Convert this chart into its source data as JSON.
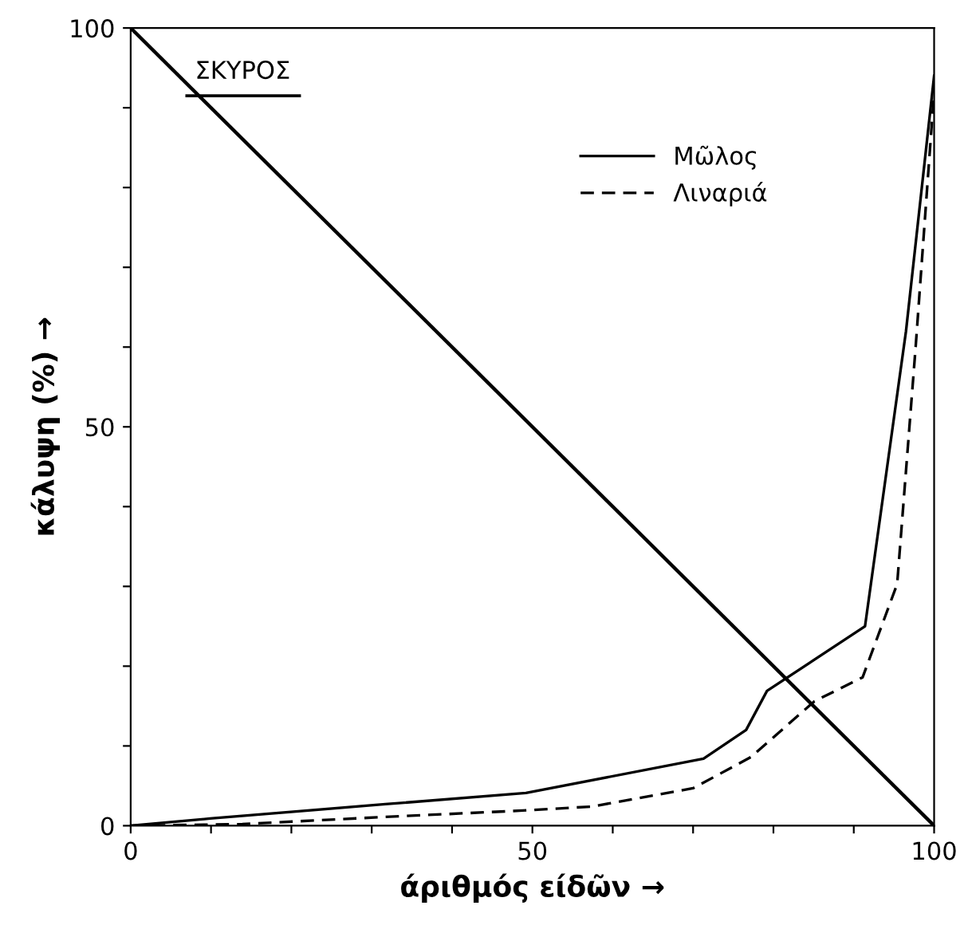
{
  "chart_data": {
    "type": "line",
    "title": "ΣΚΥΡΟΣ",
    "xlabel": "άριθμός είδῶν →",
    "ylabel": "κάλυψη (%) →",
    "xlim": [
      0,
      100
    ],
    "ylim": [
      0,
      100
    ],
    "xticks": [
      0,
      {
        "value": 10,
        "label": null
      },
      {
        "value": 20,
        "label": null
      },
      {
        "value": 30,
        "label": null
      },
      {
        "value": 40,
        "label": null
      },
      50,
      {
        "value": 60,
        "label": null
      },
      {
        "value": 70,
        "label": null
      },
      {
        "value": 80,
        "label": null
      },
      {
        "value": 90,
        "label": null
      },
      100
    ],
    "yticks": [
      0,
      {
        "value": 10,
        "label": null
      },
      {
        "value": 20,
        "label": null
      },
      {
        "value": 30,
        "label": null
      },
      {
        "value": 40,
        "label": null
      },
      50,
      {
        "value": 60,
        "label": null
      },
      {
        "value": 70,
        "label": null
      },
      {
        "value": 80,
        "label": null
      },
      {
        "value": 90,
        "label": null
      },
      100
    ],
    "grid": false,
    "legend": "top right",
    "series": [
      {
        "color": "#000000",
        "line_style": "solid",
        "x": [
          0,
          100
        ],
        "values": [
          100,
          0
        ]
      },
      {
        "name": "Μῶλος",
        "color": "#000000",
        "line_style": "solid",
        "x": [
          0,
          9.9,
          31.7,
          49.2,
          71.3,
          76.6,
          79.2,
          91.4,
          96.5,
          100
        ],
        "values": [
          0,
          0.9,
          2.7,
          4.1,
          8.4,
          12.0,
          16.9,
          25,
          62,
          94
        ]
      },
      {
        "name": "Λιναριά",
        "color": "#000000",
        "line_style": "dashed",
        "x": [
          0,
          13.9,
          31.7,
          48.8,
          57.4,
          70,
          77.2,
          85.1,
          91.1,
          95.4,
          97.7,
          100
        ],
        "values": [
          0,
          0.2,
          1.1,
          1.9,
          2.4,
          4.7,
          8.6,
          15.6,
          18.6,
          30.3,
          60,
          92
        ]
      }
    ]
  }
}
